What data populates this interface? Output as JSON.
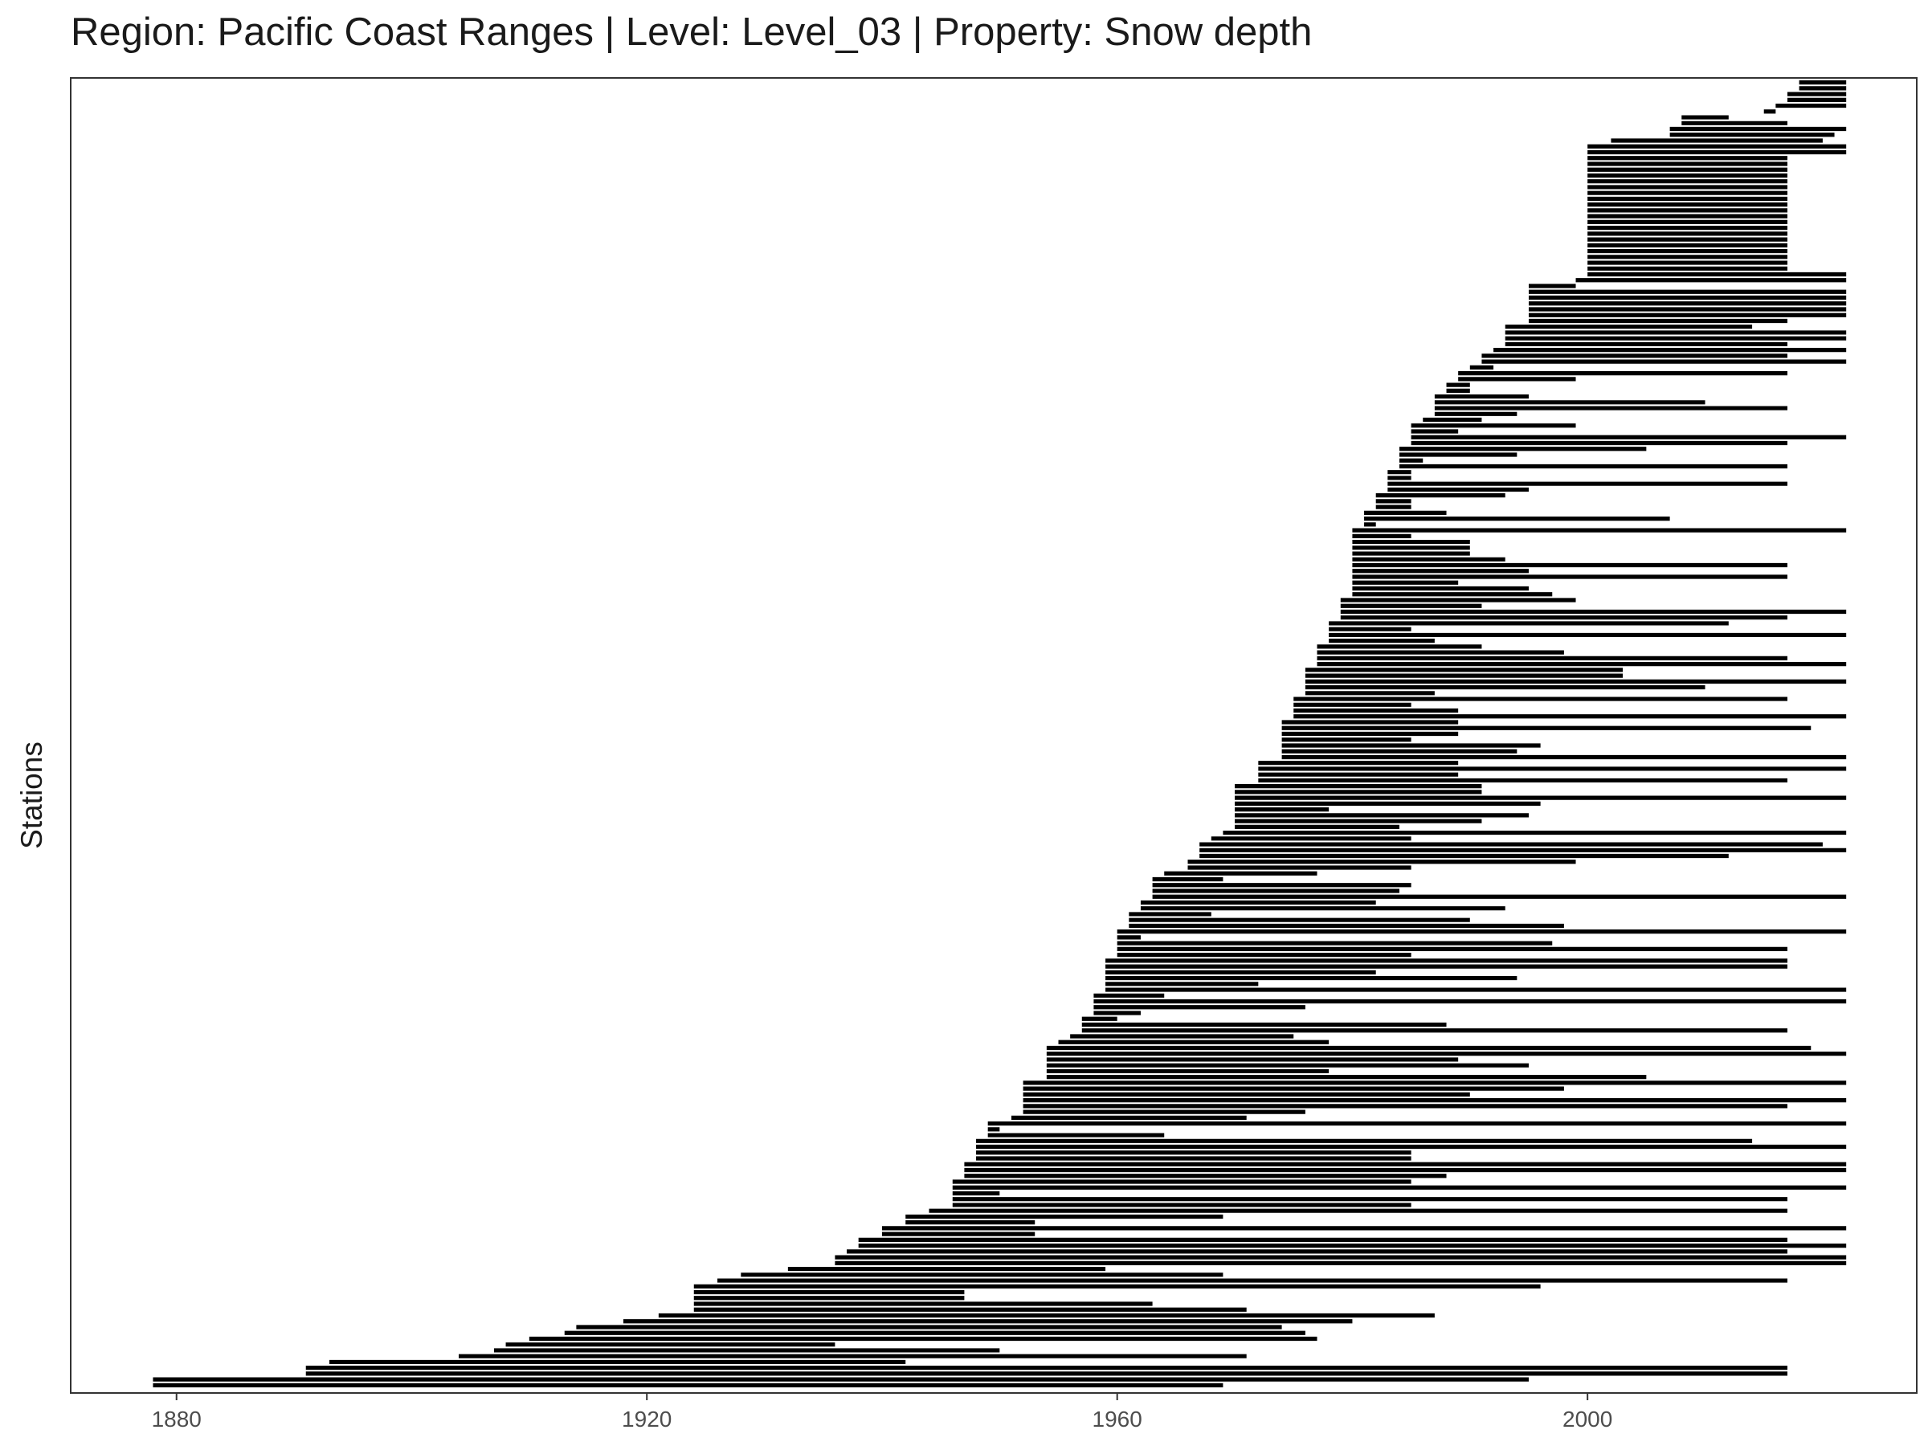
{
  "chart_data": {
    "type": "timeline",
    "title": "Region: Pacific Coast Ranges | Level: Level_03 | Property: Snow depth",
    "xlabel": "",
    "ylabel": "Stations",
    "xlim": [
      1871,
      2028
    ],
    "xticks": [
      1880,
      1920,
      1960,
      2000
    ],
    "grid": false,
    "legend": "none",
    "bar_color": "#000000",
    "series": [
      {
        "name": "",
        "segments": [
          [
            1878,
            1969
          ],
          [
            1878,
            1995
          ],
          [
            1891,
            2017
          ],
          [
            1891,
            2017
          ],
          [
            1893,
            1942
          ],
          [
            1904,
            1971
          ],
          [
            1907,
            1950
          ],
          [
            1908,
            1936
          ],
          [
            1910,
            1977
          ],
          [
            1913,
            1976
          ],
          [
            1914,
            1974
          ],
          [
            1918,
            1980
          ],
          [
            1921,
            1987
          ],
          [
            1924,
            1971
          ],
          [
            1924,
            1963
          ],
          [
            1924,
            1947
          ],
          [
            1924,
            1947
          ],
          [
            1924,
            1996
          ],
          [
            1926,
            2017
          ],
          [
            1928,
            1969
          ],
          [
            1932,
            1959
          ],
          [
            1936,
            2022
          ],
          [
            1936,
            2022
          ],
          [
            1937,
            2017
          ],
          [
            1938,
            2022
          ],
          [
            1938,
            2017
          ],
          [
            1940,
            1953
          ],
          [
            1940,
            2022
          ],
          [
            1942,
            1953
          ],
          [
            1942,
            1969
          ],
          [
            1944,
            2017
          ],
          [
            1946,
            1985
          ],
          [
            1946,
            2017
          ],
          [
            1946,
            1950
          ],
          [
            1946,
            2022
          ],
          [
            1946,
            1985
          ],
          [
            1947,
            1988
          ],
          [
            1947,
            2022
          ],
          [
            1947,
            2022
          ],
          [
            1948,
            1985
          ],
          [
            1948,
            1985
          ],
          [
            1948,
            2022
          ],
          [
            1948,
            2014
          ],
          [
            1949,
            1964
          ],
          [
            1949,
            1950
          ],
          [
            1949,
            2022
          ],
          [
            1951,
            1971
          ],
          [
            1952,
            1976
          ],
          [
            1952,
            2017
          ],
          [
            1952,
            2022
          ],
          [
            1952,
            1990
          ],
          [
            1952,
            1998
          ],
          [
            1952,
            2022
          ],
          [
            1954,
            2005
          ],
          [
            1954,
            1978
          ],
          [
            1954,
            1995
          ],
          [
            1954,
            1989
          ],
          [
            1954,
            2022
          ],
          [
            1954,
            2019
          ],
          [
            1955,
            1978
          ],
          [
            1956,
            1975
          ],
          [
            1957,
            2017
          ],
          [
            1957,
            1988
          ],
          [
            1957,
            1960
          ],
          [
            1958,
            1962
          ],
          [
            1958,
            1976
          ],
          [
            1958,
            2022
          ],
          [
            1958,
            1964
          ],
          [
            1959,
            2022
          ],
          [
            1959,
            1972
          ],
          [
            1959,
            1994
          ],
          [
            1959,
            1982
          ],
          [
            1959,
            2017
          ],
          [
            1959,
            2017
          ],
          [
            1960,
            1985
          ],
          [
            1960,
            2017
          ],
          [
            1960,
            1997
          ],
          [
            1960,
            1962
          ],
          [
            1960,
            2022
          ],
          [
            1961,
            1998
          ],
          [
            1961,
            1990
          ],
          [
            1961,
            1968
          ],
          [
            1962,
            1993
          ],
          [
            1962,
            1982
          ],
          [
            1963,
            2022
          ],
          [
            1963,
            1984
          ],
          [
            1963,
            1985
          ],
          [
            1963,
            1969
          ],
          [
            1964,
            1977
          ],
          [
            1966,
            1985
          ],
          [
            1966,
            1999
          ],
          [
            1967,
            2012
          ],
          [
            1967,
            2022
          ],
          [
            1967,
            2020
          ],
          [
            1968,
            1985
          ],
          [
            1969,
            2022
          ],
          [
            1970,
            1984
          ],
          [
            1970,
            1991
          ],
          [
            1970,
            1995
          ],
          [
            1970,
            1978
          ],
          [
            1970,
            1996
          ],
          [
            1970,
            2022
          ],
          [
            1970,
            1991
          ],
          [
            1970,
            1991
          ],
          [
            1972,
            2017
          ],
          [
            1972,
            1989
          ],
          [
            1972,
            2022
          ],
          [
            1972,
            1989
          ],
          [
            1974,
            2022
          ],
          [
            1974,
            1994
          ],
          [
            1974,
            1996
          ],
          [
            1974,
            1985
          ],
          [
            1974,
            1989
          ],
          [
            1974,
            2019
          ],
          [
            1974,
            1989
          ],
          [
            1975,
            2022
          ],
          [
            1975,
            1989
          ],
          [
            1975,
            1985
          ],
          [
            1975,
            2017
          ],
          [
            1976,
            1987
          ],
          [
            1976,
            2010
          ],
          [
            1976,
            2022
          ],
          [
            1976,
            2003
          ],
          [
            1976,
            2003
          ],
          [
            1977,
            2022
          ],
          [
            1977,
            2017
          ],
          [
            1977,
            1998
          ],
          [
            1977,
            1991
          ],
          [
            1978,
            1987
          ],
          [
            1978,
            2022
          ],
          [
            1978,
            1985
          ],
          [
            1978,
            2012
          ],
          [
            1979,
            2017
          ],
          [
            1979,
            2022
          ],
          [
            1979,
            1991
          ],
          [
            1979,
            1999
          ],
          [
            1980,
            1997
          ],
          [
            1980,
            1995
          ],
          [
            1980,
            1989
          ],
          [
            1980,
            2017
          ],
          [
            1980,
            1995
          ],
          [
            1980,
            2017
          ],
          [
            1980,
            1993
          ],
          [
            1980,
            1990
          ],
          [
            1980,
            1990
          ],
          [
            1980,
            1990
          ],
          [
            1980,
            1985
          ],
          [
            1980,
            2022
          ],
          [
            1981,
            1982
          ],
          [
            1981,
            2007
          ],
          [
            1981,
            1988
          ],
          [
            1982,
            1985
          ],
          [
            1982,
            1985
          ],
          [
            1982,
            1993
          ],
          [
            1983,
            1995
          ],
          [
            1983,
            2017
          ],
          [
            1983,
            1985
          ],
          [
            1983,
            1985
          ],
          [
            1984,
            2017
          ],
          [
            1984,
            1986
          ],
          [
            1984,
            1994
          ],
          [
            1984,
            2005
          ],
          [
            1985,
            2017
          ],
          [
            1985,
            2022
          ],
          [
            1985,
            1989
          ],
          [
            1985,
            1999
          ],
          [
            1986,
            1991
          ],
          [
            1987,
            1994
          ],
          [
            1987,
            2017
          ],
          [
            1987,
            2010
          ],
          [
            1987,
            1995
          ],
          [
            1988,
            1990
          ],
          [
            1988,
            1990
          ],
          [
            1989,
            1999
          ],
          [
            1989,
            2017
          ],
          [
            1990,
            1992
          ],
          [
            1991,
            2022
          ],
          [
            1991,
            2017
          ],
          [
            1992,
            2022
          ],
          [
            1993,
            2017
          ],
          [
            1993,
            2022
          ],
          [
            1993,
            2022
          ],
          [
            1993,
            2014
          ],
          [
            1995,
            2017
          ],
          [
            1995,
            2022
          ],
          [
            1995,
            2022
          ],
          [
            1995,
            2022
          ],
          [
            1995,
            2022
          ],
          [
            1995,
            2022
          ],
          [
            1995,
            1999
          ],
          [
            1999,
            2022
          ],
          [
            2000,
            2022
          ],
          [
            2000,
            2017
          ],
          [
            2000,
            2017
          ],
          [
            2000,
            2017
          ],
          [
            2000,
            2017
          ],
          [
            2000,
            2017
          ],
          [
            2000,
            2017
          ],
          [
            2000,
            2017
          ],
          [
            2000,
            2017
          ],
          [
            2000,
            2017
          ],
          [
            2000,
            2017
          ],
          [
            2000,
            2017
          ],
          [
            2000,
            2017
          ],
          [
            2000,
            2017
          ],
          [
            2000,
            2017
          ],
          [
            2000,
            2017
          ],
          [
            2000,
            2017
          ],
          [
            2000,
            2017
          ],
          [
            2000,
            2017
          ],
          [
            2000,
            2017
          ],
          [
            2000,
            2017
          ],
          [
            2000,
            2022
          ],
          [
            2000,
            2022
          ],
          [
            2002,
            2020
          ],
          [
            2007,
            2021
          ],
          [
            2007,
            2022
          ],
          [
            2008,
            2017
          ],
          [
            2008,
            2012
          ],
          [
            2015,
            2016
          ],
          [
            2016,
            2022
          ],
          [
            2017,
            2022
          ],
          [
            2017,
            2022
          ],
          [
            2018,
            2022
          ],
          [
            2018,
            2022
          ]
        ]
      }
    ]
  }
}
